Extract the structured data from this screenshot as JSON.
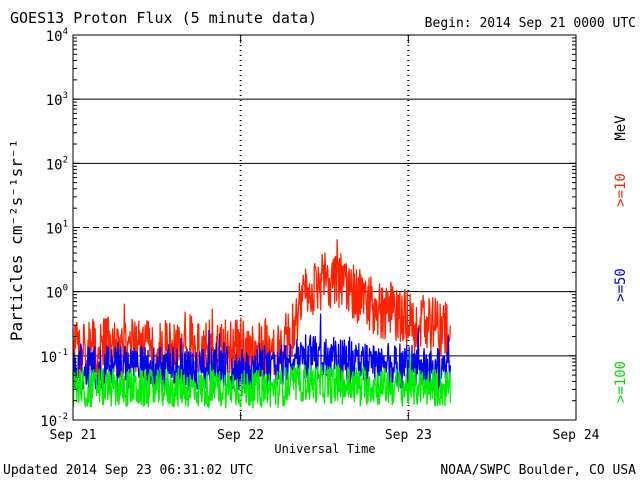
{
  "chart_data": {
    "type": "line",
    "title": "GOES13 Proton Flux (5 minute data)",
    "begin_label": "Begin: 2014 Sep 21 0000 UTC",
    "xlabel": "Universal Time",
    "ylabel": "Particles cm⁻²s⁻¹sr⁻¹",
    "y_scale": "log",
    "ylim": [
      0.01,
      10000
    ],
    "grid": true,
    "x_tick_labels": [
      "Sep 21",
      "Sep 22",
      "Sep 23",
      "Sep 24"
    ],
    "x_range_days": [
      0,
      3
    ],
    "y_ticks": [
      {
        "base": "10",
        "exp": "4"
      },
      {
        "base": "10",
        "exp": "3"
      },
      {
        "base": "10",
        "exp": "2"
      },
      {
        "base": "10",
        "exp": "1"
      },
      {
        "base": "10",
        "exp": "0"
      },
      {
        "base": "10",
        "exp": "-1"
      },
      {
        "base": "10",
        "exp": "-2"
      }
    ],
    "right_labels": {
      "unit": "MeV",
      "gte10": ">=10",
      "gte50": ">=50",
      "gte100": ">=100"
    },
    "series": [
      {
        "name": ">=10 MeV",
        "color": "#ff2200",
        "x": [
          0.0,
          0.05,
          0.1,
          0.15,
          0.2,
          0.25,
          0.3,
          0.35,
          0.4,
          0.45,
          0.5,
          0.55,
          0.6,
          0.65,
          0.7,
          0.75,
          0.8,
          0.85,
          0.9,
          0.95,
          1.0,
          1.05,
          1.1,
          1.15,
          1.2,
          1.25,
          1.3,
          1.35,
          1.4,
          1.45,
          1.5,
          1.55,
          1.6,
          1.65,
          1.7,
          1.75,
          1.8,
          1.85,
          1.9,
          1.95,
          2.0,
          2.05,
          2.1,
          2.15,
          2.2,
          2.25
        ],
        "values": [
          0.13,
          0.12,
          0.15,
          0.12,
          0.16,
          0.13,
          0.12,
          0.14,
          0.12,
          0.13,
          0.12,
          0.14,
          0.12,
          0.13,
          0.15,
          0.12,
          0.14,
          0.12,
          0.13,
          0.12,
          0.14,
          0.13,
          0.12,
          0.14,
          0.13,
          0.14,
          0.2,
          0.5,
          0.9,
          1.3,
          1.5,
          1.4,
          1.3,
          1.1,
          0.9,
          0.7,
          0.6,
          0.5,
          0.5,
          0.4,
          0.4,
          0.35,
          0.3,
          0.3,
          0.25,
          0.3
        ]
      },
      {
        "name": ">=50 MeV",
        "color": "#0000ee",
        "x": [
          0.0,
          0.05,
          0.1,
          0.15,
          0.2,
          0.25,
          0.3,
          0.35,
          0.4,
          0.45,
          0.5,
          0.55,
          0.6,
          0.65,
          0.7,
          0.75,
          0.8,
          0.85,
          0.9,
          0.95,
          1.0,
          1.05,
          1.1,
          1.15,
          1.2,
          1.25,
          1.3,
          1.35,
          1.4,
          1.45,
          1.5,
          1.55,
          1.6,
          1.65,
          1.7,
          1.75,
          1.8,
          1.85,
          1.9,
          1.95,
          2.0,
          2.05,
          2.1,
          2.15,
          2.2,
          2.25
        ],
        "values": [
          0.06,
          0.065,
          0.07,
          0.06,
          0.065,
          0.06,
          0.07,
          0.06,
          0.065,
          0.06,
          0.06,
          0.065,
          0.07,
          0.06,
          0.065,
          0.06,
          0.065,
          0.06,
          0.07,
          0.06,
          0.065,
          0.06,
          0.07,
          0.065,
          0.06,
          0.07,
          0.08,
          0.09,
          0.1,
          0.1,
          0.09,
          0.09,
          0.08,
          0.08,
          0.08,
          0.07,
          0.07,
          0.07,
          0.07,
          0.07,
          0.07,
          0.07,
          0.06,
          0.06,
          0.06,
          0.06
        ]
      },
      {
        "name": ">=100 MeV",
        "color": "#00ee00",
        "x": [
          0.0,
          0.05,
          0.1,
          0.15,
          0.2,
          0.25,
          0.3,
          0.35,
          0.4,
          0.45,
          0.5,
          0.55,
          0.6,
          0.65,
          0.7,
          0.75,
          0.8,
          0.85,
          0.9,
          0.95,
          1.0,
          1.05,
          1.1,
          1.15,
          1.2,
          1.25,
          1.3,
          1.35,
          1.4,
          1.45,
          1.5,
          1.55,
          1.6,
          1.65,
          1.7,
          1.75,
          1.8,
          1.85,
          1.9,
          1.95,
          2.0,
          2.05,
          2.1,
          2.15,
          2.2,
          2.25
        ],
        "values": [
          0.03,
          0.032,
          0.03,
          0.034,
          0.03,
          0.032,
          0.03,
          0.033,
          0.03,
          0.031,
          0.03,
          0.032,
          0.03,
          0.033,
          0.03,
          0.031,
          0.03,
          0.032,
          0.03,
          0.033,
          0.03,
          0.031,
          0.03,
          0.032,
          0.03,
          0.033,
          0.035,
          0.037,
          0.038,
          0.037,
          0.036,
          0.036,
          0.035,
          0.035,
          0.035,
          0.034,
          0.034,
          0.033,
          0.033,
          0.033,
          0.032,
          0.032,
          0.032,
          0.032,
          0.031,
          0.031
        ]
      }
    ]
  },
  "footer": {
    "updated": "Updated 2014 Sep 23 06:31:02 UTC",
    "source": "NOAA/SWPC Boulder, CO USA"
  }
}
